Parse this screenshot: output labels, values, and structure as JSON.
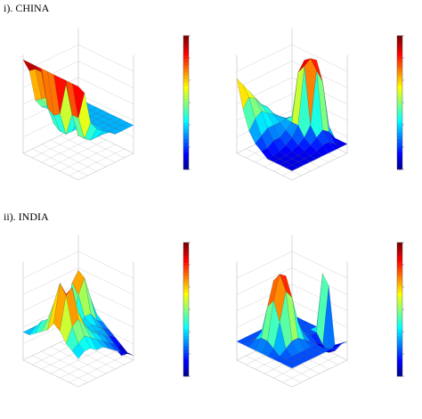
{
  "sections": [
    {
      "title": "i). CHINA"
    },
    {
      "title": "ii). INDIA"
    }
  ],
  "chart_data": [
    {
      "type": "surface",
      "section": "i). CHINA",
      "colorbar": {
        "colormap": "jet",
        "ticks": []
      },
      "xlabel": "",
      "ylabel": "",
      "zlabel": "",
      "z": [
        [
          1.0,
          1.0,
          1.0,
          1.0,
          1.0,
          1.0,
          1.0,
          1.0,
          1.0,
          1.0
        ],
        [
          0.9,
          0.6,
          0.6,
          0.9,
          0.55,
          0.5,
          0.55,
          0.9,
          0.9,
          0.85
        ],
        [
          0.55,
          0.35,
          0.35,
          0.55,
          0.3,
          0.3,
          0.35,
          0.6,
          0.55,
          0.5
        ],
        [
          0.45,
          0.3,
          0.3,
          0.45,
          0.3,
          0.3,
          0.3,
          0.5,
          0.45,
          0.4
        ],
        [
          0.4,
          0.3,
          0.3,
          0.4,
          0.3,
          0.3,
          0.3,
          0.45,
          0.4,
          0.35
        ],
        [
          0.35,
          0.3,
          0.3,
          0.35,
          0.3,
          0.3,
          0.3,
          0.4,
          0.35,
          0.3
        ],
        [
          0.3,
          0.3,
          0.3,
          0.3,
          0.3,
          0.3,
          0.3,
          0.35,
          0.3,
          0.3
        ],
        [
          0.3,
          0.3,
          0.3,
          0.3,
          0.3,
          0.3,
          0.3,
          0.3,
          0.3,
          0.3
        ],
        [
          0.3,
          0.3,
          0.3,
          0.3,
          0.3,
          0.3,
          0.3,
          0.3,
          0.3,
          0.3
        ],
        [
          0.3,
          0.3,
          0.3,
          0.3,
          0.3,
          0.3,
          0.3,
          0.3,
          0.3,
          0.3
        ]
      ]
    },
    {
      "type": "surface",
      "section": "i). CHINA",
      "colorbar": {
        "colormap": "jet",
        "ticks": []
      },
      "xlabel": "",
      "ylabel": "",
      "zlabel": "",
      "z": [
        [
          0.1,
          0.1,
          0.1,
          0.1,
          0.1,
          0.15,
          0.2,
          0.3,
          0.5,
          0.8
        ],
        [
          0.1,
          0.1,
          0.1,
          0.1,
          0.1,
          0.15,
          0.25,
          0.4,
          0.6,
          0.7
        ],
        [
          0.1,
          0.1,
          0.1,
          0.1,
          0.12,
          0.2,
          0.3,
          0.45,
          0.55,
          0.6
        ],
        [
          0.1,
          0.1,
          0.1,
          0.12,
          0.15,
          0.2,
          0.3,
          0.4,
          0.45,
          0.5
        ],
        [
          0.1,
          0.1,
          0.12,
          0.15,
          0.2,
          0.25,
          0.3,
          0.35,
          0.4,
          0.4
        ],
        [
          0.1,
          0.12,
          0.15,
          0.2,
          0.3,
          0.3,
          0.3,
          0.3,
          0.3,
          0.3
        ],
        [
          0.1,
          0.15,
          0.2,
          0.3,
          0.9,
          0.8,
          0.3,
          0.25,
          0.2,
          0.2
        ],
        [
          0.1,
          0.15,
          0.25,
          0.85,
          0.95,
          0.9,
          0.3,
          0.2,
          0.15,
          0.15
        ],
        [
          0.1,
          0.1,
          0.2,
          0.7,
          0.9,
          0.6,
          0.2,
          0.15,
          0.1,
          0.1
        ],
        [
          0.1,
          0.1,
          0.1,
          0.2,
          0.3,
          0.2,
          0.1,
          0.1,
          0.1,
          0.1
        ]
      ]
    },
    {
      "type": "surface",
      "section": "ii). INDIA",
      "colorbar": {
        "colormap": "jet",
        "ticks": []
      },
      "xlabel": "",
      "ylabel": "",
      "zlabel": "",
      "z": [
        [
          0.3,
          0.35,
          0.4,
          0.5,
          0.55,
          0.45,
          0.4,
          0.35,
          0.3,
          0.3
        ],
        [
          0.35,
          0.4,
          0.55,
          0.85,
          0.95,
          0.7,
          0.5,
          0.45,
          0.35,
          0.3
        ],
        [
          0.35,
          0.45,
          0.6,
          0.9,
          0.8,
          0.6,
          0.5,
          0.4,
          0.35,
          0.3
        ],
        [
          0.3,
          0.4,
          0.5,
          0.6,
          0.55,
          0.5,
          0.45,
          0.4,
          0.35,
          0.3
        ],
        [
          0.3,
          0.35,
          0.4,
          0.45,
          0.4,
          0.35,
          0.35,
          0.35,
          0.3,
          0.3
        ],
        [
          0.25,
          0.3,
          0.35,
          0.35,
          0.3,
          0.3,
          0.3,
          0.3,
          0.3,
          0.25
        ],
        [
          0.2,
          0.25,
          0.3,
          0.3,
          0.35,
          0.4,
          0.6,
          0.7,
          0.3,
          0.25
        ],
        [
          0.15,
          0.2,
          0.25,
          0.3,
          0.3,
          0.4,
          0.75,
          0.8,
          0.35,
          0.25
        ],
        [
          0.1,
          0.05,
          0.1,
          0.2,
          0.25,
          0.3,
          0.5,
          0.6,
          0.3,
          0.2
        ],
        [
          0.05,
          0.05,
          0.1,
          0.15,
          0.2,
          0.25,
          0.3,
          0.3,
          0.25,
          0.2
        ]
      ]
    },
    {
      "type": "surface",
      "section": "ii). INDIA",
      "colorbar": {
        "colormap": "jet",
        "ticks": []
      },
      "xlabel": "",
      "ylabel": "",
      "zlabel": "",
      "z": [
        [
          0.2,
          0.2,
          0.2,
          0.2,
          0.2,
          0.2,
          0.2,
          0.2,
          0.2,
          0.2
        ],
        [
          0.2,
          0.2,
          0.2,
          0.2,
          0.25,
          0.3,
          0.3,
          0.25,
          0.2,
          0.2
        ],
        [
          0.2,
          0.2,
          0.2,
          0.25,
          0.5,
          0.7,
          0.6,
          0.3,
          0.2,
          0.2
        ],
        [
          0.2,
          0.2,
          0.2,
          0.3,
          0.8,
          0.95,
          0.85,
          0.35,
          0.2,
          0.2
        ],
        [
          0.2,
          0.2,
          0.2,
          0.3,
          0.7,
          0.9,
          0.8,
          0.3,
          0.2,
          0.2
        ],
        [
          0.2,
          0.2,
          0.2,
          0.25,
          0.4,
          0.5,
          0.45,
          0.25,
          0.2,
          0.2
        ],
        [
          0.2,
          0.2,
          0.2,
          0.2,
          0.25,
          0.3,
          0.25,
          0.2,
          0.2,
          0.2
        ],
        [
          0.2,
          0.15,
          0.1,
          0.15,
          0.2,
          0.2,
          0.2,
          0.2,
          0.2,
          0.2
        ],
        [
          0.2,
          0.1,
          0.05,
          0.1,
          0.2,
          0.2,
          0.2,
          0.2,
          0.2,
          0.2
        ],
        [
          0.2,
          0.15,
          0.1,
          0.7,
          0.8,
          0.2,
          0.2,
          0.2,
          0.2,
          0.2
        ]
      ]
    }
  ]
}
